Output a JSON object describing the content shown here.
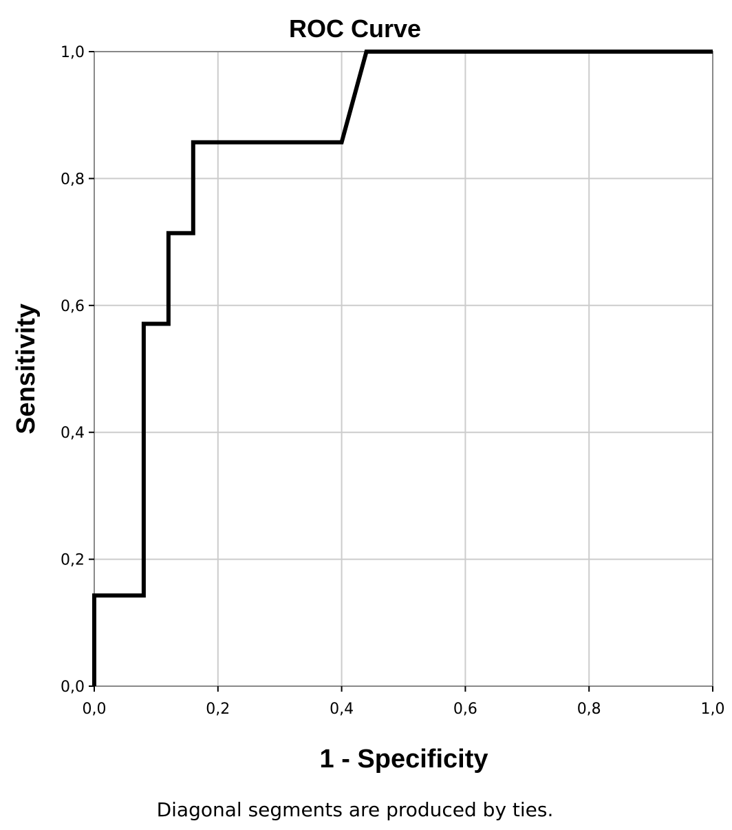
{
  "chart_data": {
    "type": "line",
    "title": "ROC Curve",
    "xlabel": "1 - Specificity",
    "ylabel": "Sensitivity",
    "footnote": "Diagonal segments are produced by ties.",
    "xlim": [
      0,
      1
    ],
    "ylim": [
      0,
      1
    ],
    "xticks": [
      0,
      0.2,
      0.4,
      0.6,
      0.8,
      1
    ],
    "yticks": [
      0,
      0.2,
      0.4,
      0.6,
      0.8,
      1
    ],
    "xtick_labels": [
      "0,0",
      "0,2",
      "0,4",
      "0,6",
      "0,8",
      "1,0"
    ],
    "ytick_labels": [
      "0,0",
      "0,2",
      "0,4",
      "0,6",
      "0,8",
      "1,0"
    ],
    "grid": true,
    "legend": "none",
    "series": [
      {
        "line_color": "#000000",
        "x": [
          0,
          0,
          0.08,
          0.08,
          0.12,
          0.12,
          0.16,
          0.16,
          0.4,
          0.44,
          1.0
        ],
        "y": [
          0,
          0.143,
          0.143,
          0.571,
          0.571,
          0.714,
          0.714,
          0.857,
          0.857,
          1.0,
          1.0
        ]
      }
    ],
    "colors": {
      "grid": "#cccccc",
      "frame": "#888888",
      "curve": "#000000",
      "background": "#ffffff"
    }
  }
}
